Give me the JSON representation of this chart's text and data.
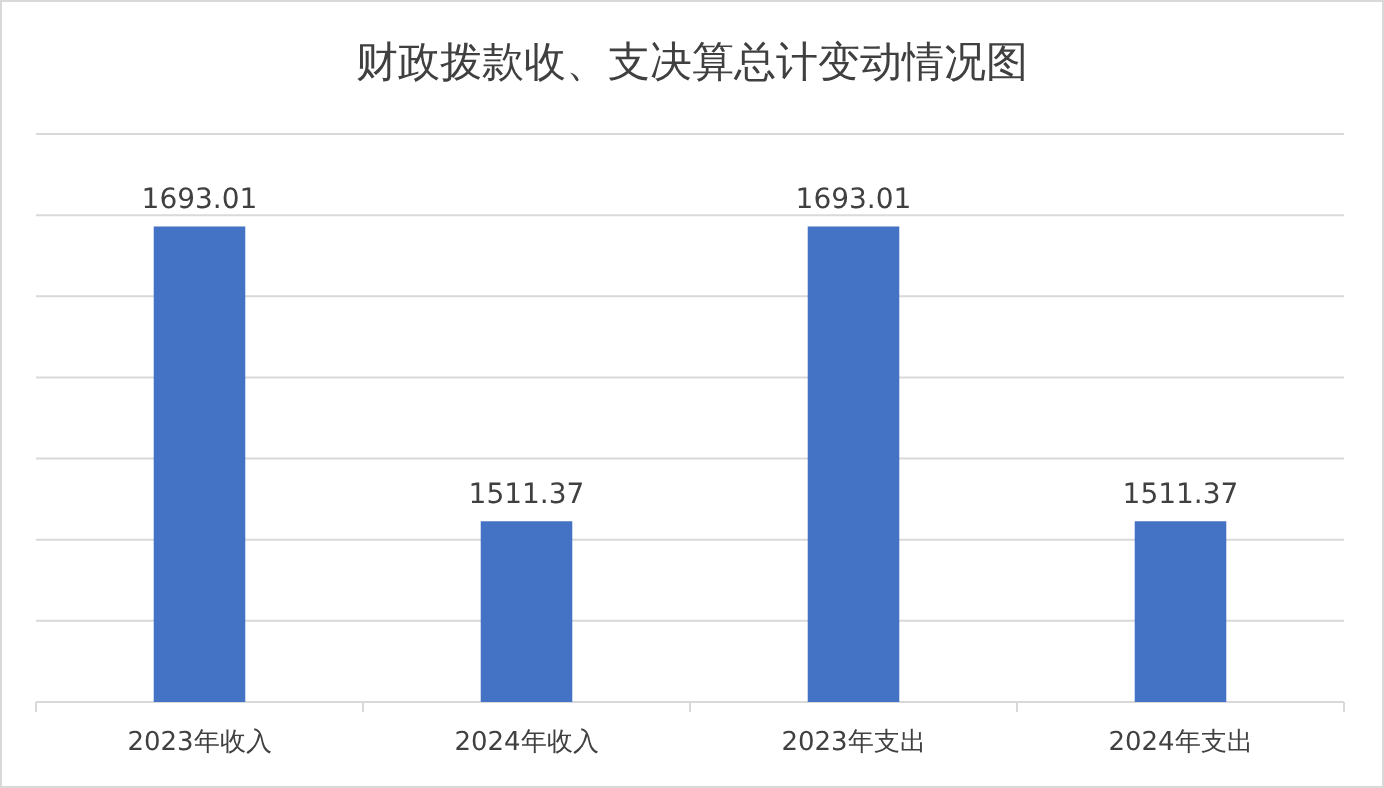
{
  "chart_data": {
    "type": "bar",
    "title": "财政拨款收、支决算总计变动情况图",
    "categories": [
      "2023年收入",
      "2024年收入",
      "2023年支出",
      "2024年支出"
    ],
    "values": [
      1693.01,
      1511.37,
      1693.01,
      1511.37
    ],
    "color": "#4472c4",
    "ylim": [
      1400,
      1750
    ],
    "yticks": [
      {
        "value": 1400,
        "label": null
      },
      {
        "value": 1450,
        "label": null
      },
      {
        "value": 1500,
        "label": null
      },
      {
        "value": 1550,
        "label": null
      },
      {
        "value": 1600,
        "label": null
      },
      {
        "value": 1650,
        "label": null
      },
      {
        "value": 1700,
        "label": null
      },
      {
        "value": 1750,
        "label": null
      }
    ],
    "tick_labels": "x",
    "grid": "y",
    "data_labels": true
  }
}
